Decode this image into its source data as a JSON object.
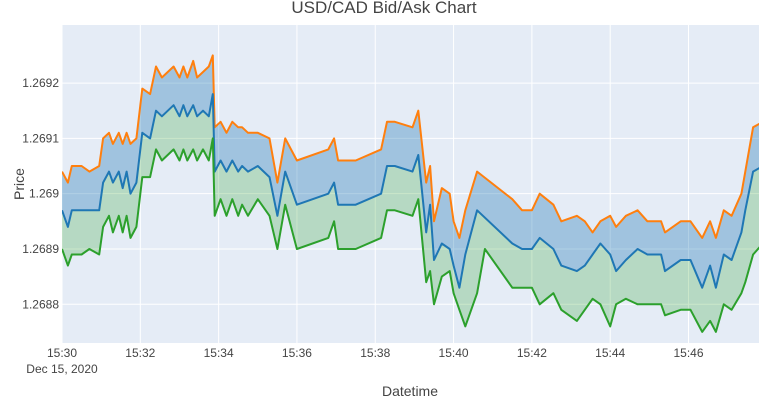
{
  "chart_data": {
    "type": "area",
    "title": "USD/CAD Bid/Ask Chart",
    "xlabel": "Datetime",
    "ylabel": "Price",
    "x_ticks": [
      {
        "label": "15:30",
        "sublabel": "Dec 15, 2020",
        "t": 0
      },
      {
        "label": "15:32",
        "t": 2
      },
      {
        "label": "15:34",
        "t": 4
      },
      {
        "label": "15:36",
        "t": 6
      },
      {
        "label": "15:38",
        "t": 8
      },
      {
        "label": "15:40",
        "t": 10
      },
      {
        "label": "15:42",
        "t": 12
      },
      {
        "label": "15:44",
        "t": 14
      },
      {
        "label": "15:46",
        "t": 16
      }
    ],
    "y_ticks": [
      "1.2688",
      "1.2689",
      "1.269",
      "1.2691",
      "1.2692"
    ],
    "xlim": [
      "15:30",
      "15:47.8"
    ],
    "ylim": [
      1.26873,
      1.269305
    ],
    "grid": true,
    "colors": {
      "plot_bg": "#e5ecf6",
      "ask": "#ff7f0e",
      "mid": "#1f77b4",
      "bid": "#2ca02c",
      "upper_fill": "rgba(31,119,180,0.35)",
      "lower_fill": "rgba(44,160,44,0.25)"
    },
    "series": [
      {
        "key": "ask",
        "points": [
          [
            0,
            1.26904
          ],
          [
            0.15,
            1.26902
          ],
          [
            0.25,
            1.26905
          ],
          [
            0.5,
            1.26905
          ],
          [
            0.7,
            1.26904
          ],
          [
            0.95,
            1.26905
          ],
          [
            1.05,
            1.2691
          ],
          [
            1.2,
            1.26911
          ],
          [
            1.3,
            1.26909
          ],
          [
            1.45,
            1.26911
          ],
          [
            1.55,
            1.26909
          ],
          [
            1.65,
            1.26911
          ],
          [
            1.75,
            1.26909
          ],
          [
            1.9,
            1.2691
          ],
          [
            2.05,
            1.26919
          ],
          [
            2.25,
            1.26918
          ],
          [
            2.4,
            1.26923
          ],
          [
            2.55,
            1.26921
          ],
          [
            2.85,
            1.26923
          ],
          [
            3.0,
            1.26921
          ],
          [
            3.1,
            1.26923
          ],
          [
            3.2,
            1.26921
          ],
          [
            3.35,
            1.26924
          ],
          [
            3.45,
            1.26921
          ],
          [
            3.6,
            1.26922
          ],
          [
            3.75,
            1.26923
          ],
          [
            3.85,
            1.26925
          ],
          [
            3.9,
            1.26912
          ],
          [
            4.05,
            1.26913
          ],
          [
            4.2,
            1.26911
          ],
          [
            4.35,
            1.26913
          ],
          [
            4.5,
            1.26912
          ],
          [
            4.6,
            1.26912
          ],
          [
            4.75,
            1.26911
          ],
          [
            5.0,
            1.26911
          ],
          [
            5.3,
            1.2691
          ],
          [
            5.5,
            1.26902
          ],
          [
            5.7,
            1.2691
          ],
          [
            6.0,
            1.26906
          ],
          [
            6.8,
            1.26908
          ],
          [
            6.95,
            1.2691
          ],
          [
            7.05,
            1.26906
          ],
          [
            7.5,
            1.26906
          ],
          [
            8.15,
            1.26908
          ],
          [
            8.3,
            1.26913
          ],
          [
            8.5,
            1.26913
          ],
          [
            8.95,
            1.26912
          ],
          [
            9.1,
            1.26915
          ],
          [
            9.3,
            1.26902
          ],
          [
            9.4,
            1.26905
          ],
          [
            9.5,
            1.26895
          ],
          [
            9.7,
            1.26901
          ],
          [
            9.9,
            1.269
          ],
          [
            10.0,
            1.26895
          ],
          [
            10.15,
            1.26892
          ],
          [
            10.3,
            1.26897
          ],
          [
            10.6,
            1.26904
          ],
          [
            11.5,
            1.26899
          ],
          [
            11.75,
            1.26897
          ],
          [
            12.0,
            1.26897
          ],
          [
            12.2,
            1.269
          ],
          [
            12.55,
            1.26898
          ],
          [
            12.75,
            1.26895
          ],
          [
            13.15,
            1.26896
          ],
          [
            13.35,
            1.26895
          ],
          [
            13.55,
            1.26893
          ],
          [
            13.75,
            1.26895
          ],
          [
            14.0,
            1.26896
          ],
          [
            14.15,
            1.26894
          ],
          [
            14.4,
            1.26896
          ],
          [
            14.7,
            1.26897
          ],
          [
            14.95,
            1.26895
          ],
          [
            15.3,
            1.26895
          ],
          [
            15.4,
            1.26893
          ],
          [
            15.8,
            1.26895
          ],
          [
            16.05,
            1.26895
          ],
          [
            16.35,
            1.26892
          ],
          [
            16.55,
            1.26895
          ],
          [
            16.7,
            1.26892
          ],
          [
            16.9,
            1.26897
          ],
          [
            17.1,
            1.26896
          ],
          [
            17.35,
            1.269
          ],
          [
            17.45,
            1.26904
          ],
          [
            17.65,
            1.26912
          ],
          [
            17.9,
            1.26913
          ],
          [
            18.2,
            1.26914
          ],
          [
            18.35,
            1.26917
          ],
          [
            18.45,
            1.26918
          ],
          [
            18.55,
            1.26914
          ]
        ]
      },
      {
        "key": "mid",
        "points": [
          [
            0,
            1.26897
          ],
          [
            0.15,
            1.26894
          ],
          [
            0.25,
            1.26897
          ],
          [
            0.5,
            1.26897
          ],
          [
            0.7,
            1.26897
          ],
          [
            0.95,
            1.26897
          ],
          [
            1.05,
            1.26902
          ],
          [
            1.2,
            1.26904
          ],
          [
            1.3,
            1.26902
          ],
          [
            1.45,
            1.26904
          ],
          [
            1.55,
            1.26901
          ],
          [
            1.65,
            1.26904
          ],
          [
            1.75,
            1.269
          ],
          [
            1.9,
            1.26902
          ],
          [
            2.05,
            1.26911
          ],
          [
            2.25,
            1.2691
          ],
          [
            2.4,
            1.26915
          ],
          [
            2.55,
            1.26914
          ],
          [
            2.85,
            1.26916
          ],
          [
            3.0,
            1.26914
          ],
          [
            3.1,
            1.26916
          ],
          [
            3.2,
            1.26914
          ],
          [
            3.35,
            1.26916
          ],
          [
            3.45,
            1.26914
          ],
          [
            3.6,
            1.26915
          ],
          [
            3.75,
            1.26914
          ],
          [
            3.85,
            1.26918
          ],
          [
            3.9,
            1.26904
          ],
          [
            4.05,
            1.26906
          ],
          [
            4.2,
            1.26904
          ],
          [
            4.35,
            1.26906
          ],
          [
            4.5,
            1.26904
          ],
          [
            4.6,
            1.26905
          ],
          [
            4.75,
            1.26904
          ],
          [
            5.0,
            1.26905
          ],
          [
            5.3,
            1.26903
          ],
          [
            5.5,
            1.26896
          ],
          [
            5.7,
            1.26904
          ],
          [
            6.0,
            1.26898
          ],
          [
            6.8,
            1.269
          ],
          [
            6.95,
            1.26902
          ],
          [
            7.05,
            1.26898
          ],
          [
            7.5,
            1.26898
          ],
          [
            8.15,
            1.269
          ],
          [
            8.3,
            1.26905
          ],
          [
            8.5,
            1.26905
          ],
          [
            8.95,
            1.26904
          ],
          [
            9.1,
            1.26907
          ],
          [
            9.3,
            1.26893
          ],
          [
            9.4,
            1.26898
          ],
          [
            9.5,
            1.26888
          ],
          [
            9.7,
            1.26891
          ],
          [
            9.9,
            1.2689
          ],
          [
            10.0,
            1.26887
          ],
          [
            10.15,
            1.26883
          ],
          [
            10.3,
            1.26889
          ],
          [
            10.6,
            1.26897
          ],
          [
            11.5,
            1.26891
          ],
          [
            11.75,
            1.2689
          ],
          [
            12.0,
            1.2689
          ],
          [
            12.2,
            1.26892
          ],
          [
            12.55,
            1.2689
          ],
          [
            12.75,
            1.26887
          ],
          [
            13.15,
            1.26886
          ],
          [
            13.35,
            1.26887
          ],
          [
            13.55,
            1.26889
          ],
          [
            13.75,
            1.26891
          ],
          [
            14.0,
            1.26889
          ],
          [
            14.15,
            1.26886
          ],
          [
            14.4,
            1.26888
          ],
          [
            14.7,
            1.2689
          ],
          [
            14.95,
            1.26889
          ],
          [
            15.3,
            1.26889
          ],
          [
            15.4,
            1.26886
          ],
          [
            15.8,
            1.26888
          ],
          [
            16.05,
            1.26888
          ],
          [
            16.35,
            1.26883
          ],
          [
            16.55,
            1.26887
          ],
          [
            16.7,
            1.26883
          ],
          [
            16.9,
            1.26889
          ],
          [
            17.1,
            1.26888
          ],
          [
            17.35,
            1.26893
          ],
          [
            17.45,
            1.26897
          ],
          [
            17.65,
            1.26904
          ],
          [
            17.9,
            1.26905
          ],
          [
            18.2,
            1.26906
          ],
          [
            18.35,
            1.26909
          ],
          [
            18.45,
            1.2691
          ],
          [
            18.55,
            1.26906
          ]
        ]
      },
      {
        "key": "bid",
        "points": [
          [
            0,
            1.2689
          ],
          [
            0.15,
            1.26887
          ],
          [
            0.25,
            1.26889
          ],
          [
            0.5,
            1.26889
          ],
          [
            0.7,
            1.2689
          ],
          [
            0.95,
            1.26889
          ],
          [
            1.05,
            1.26894
          ],
          [
            1.2,
            1.26896
          ],
          [
            1.3,
            1.26893
          ],
          [
            1.45,
            1.26896
          ],
          [
            1.55,
            1.26893
          ],
          [
            1.65,
            1.26896
          ],
          [
            1.75,
            1.26892
          ],
          [
            1.9,
            1.26894
          ],
          [
            2.05,
            1.26903
          ],
          [
            2.25,
            1.26903
          ],
          [
            2.4,
            1.26908
          ],
          [
            2.55,
            1.26906
          ],
          [
            2.85,
            1.26908
          ],
          [
            3.0,
            1.26906
          ],
          [
            3.1,
            1.26908
          ],
          [
            3.2,
            1.26906
          ],
          [
            3.35,
            1.26908
          ],
          [
            3.45,
            1.26906
          ],
          [
            3.6,
            1.26908
          ],
          [
            3.75,
            1.26906
          ],
          [
            3.85,
            1.2691
          ],
          [
            3.9,
            1.26896
          ],
          [
            4.05,
            1.26899
          ],
          [
            4.2,
            1.26896
          ],
          [
            4.35,
            1.26899
          ],
          [
            4.5,
            1.26896
          ],
          [
            4.6,
            1.26898
          ],
          [
            4.75,
            1.26896
          ],
          [
            5.0,
            1.26899
          ],
          [
            5.3,
            1.26896
          ],
          [
            5.5,
            1.2689
          ],
          [
            5.7,
            1.26898
          ],
          [
            6.0,
            1.2689
          ],
          [
            6.8,
            1.26892
          ],
          [
            6.95,
            1.26895
          ],
          [
            7.05,
            1.2689
          ],
          [
            7.5,
            1.2689
          ],
          [
            8.15,
            1.26892
          ],
          [
            8.3,
            1.26897
          ],
          [
            8.5,
            1.26897
          ],
          [
            8.95,
            1.26896
          ],
          [
            9.1,
            1.26899
          ],
          [
            9.3,
            1.26884
          ],
          [
            9.4,
            1.26886
          ],
          [
            9.5,
            1.2688
          ],
          [
            9.7,
            1.26885
          ],
          [
            9.9,
            1.26886
          ],
          [
            10.0,
            1.26882
          ],
          [
            10.15,
            1.26879
          ],
          [
            10.3,
            1.26876
          ],
          [
            10.6,
            1.26882
          ],
          [
            10.8,
            1.2689
          ],
          [
            11.5,
            1.26883
          ],
          [
            11.75,
            1.26883
          ],
          [
            12.0,
            1.26883
          ],
          [
            12.2,
            1.2688
          ],
          [
            12.55,
            1.26882
          ],
          [
            12.75,
            1.26879
          ],
          [
            13.15,
            1.26877
          ],
          [
            13.35,
            1.26879
          ],
          [
            13.55,
            1.26881
          ],
          [
            13.75,
            1.2688
          ],
          [
            14.0,
            1.26876
          ],
          [
            14.15,
            1.2688
          ],
          [
            14.4,
            1.26881
          ],
          [
            14.7,
            1.2688
          ],
          [
            14.95,
            1.2688
          ],
          [
            15.3,
            1.2688
          ],
          [
            15.4,
            1.26878
          ],
          [
            15.8,
            1.26879
          ],
          [
            16.05,
            1.26879
          ],
          [
            16.35,
            1.26875
          ],
          [
            16.55,
            1.26877
          ],
          [
            16.7,
            1.26875
          ],
          [
            16.9,
            1.2688
          ],
          [
            17.1,
            1.26879
          ],
          [
            17.35,
            1.26882
          ],
          [
            17.45,
            1.26884
          ],
          [
            17.65,
            1.26889
          ],
          [
            17.9,
            1.26891
          ],
          [
            18.2,
            1.26892
          ],
          [
            18.35,
            1.26897
          ],
          [
            18.45,
            1.26898
          ],
          [
            18.55,
            1.26897
          ]
        ]
      }
    ]
  }
}
